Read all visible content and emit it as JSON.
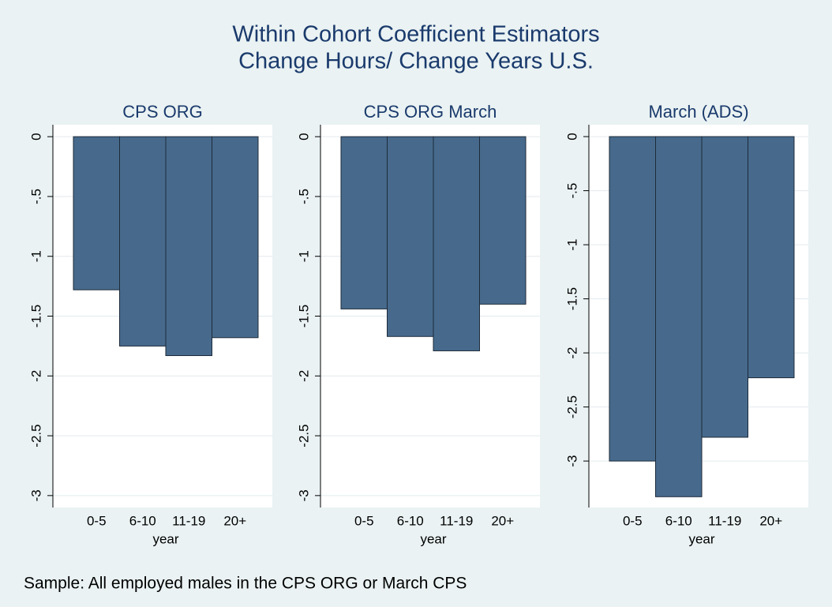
{
  "title": [
    "Within Cohort Coefficient Estimators",
    "Change Hours/ Change Years U.S."
  ],
  "note": "Sample: All employed males in the CPS ORG or March CPS",
  "chart_data": [
    {
      "type": "bar",
      "title": "CPS ORG",
      "xlabel": "year",
      "categories": [
        "0-5",
        "6-10",
        "11-19",
        "20+"
      ],
      "values": [
        -1.28,
        -1.75,
        -1.83,
        -1.68
      ],
      "color": "#476a8c",
      "grid": true,
      "ylim": [
        -3.1,
        0.1
      ],
      "yticks": [
        0,
        {
          "value": -0.5,
          "label": "-.5"
        },
        -1,
        {
          "value": -1.5,
          "label": "-1.5"
        },
        -2,
        {
          "value": -2.5,
          "label": "-2.5"
        },
        -3
      ]
    },
    {
      "type": "bar",
      "title": "CPS ORG March",
      "xlabel": "year",
      "categories": [
        "0-5",
        "6-10",
        "11-19",
        "20+"
      ],
      "values": [
        -1.44,
        -1.67,
        -1.79,
        -1.4
      ],
      "color": "#476a8c",
      "grid": true,
      "ylim": [
        -3.1,
        0.1
      ],
      "yticks": [
        0,
        {
          "value": -0.5,
          "label": "-.5"
        },
        -1,
        {
          "value": -1.5,
          "label": "-1.5"
        },
        -2,
        {
          "value": -2.5,
          "label": "-2.5"
        },
        -3
      ]
    },
    {
      "type": "bar",
      "title": "March (ADS)",
      "xlabel": "year",
      "categories": [
        "0-5",
        "6-10",
        "11-19",
        "20+"
      ],
      "values": [
        -3.0,
        -3.33,
        -2.78,
        -2.23
      ],
      "color": "#476a8c",
      "grid": true,
      "ylim": [
        -3.43,
        0.11
      ],
      "yticks": [
        0,
        {
          "value": -0.5,
          "label": "-.5"
        },
        -1,
        {
          "value": -1.5,
          "label": "-1.5"
        },
        -2,
        {
          "value": -2.5,
          "label": "-2.5"
        },
        -3
      ]
    }
  ]
}
